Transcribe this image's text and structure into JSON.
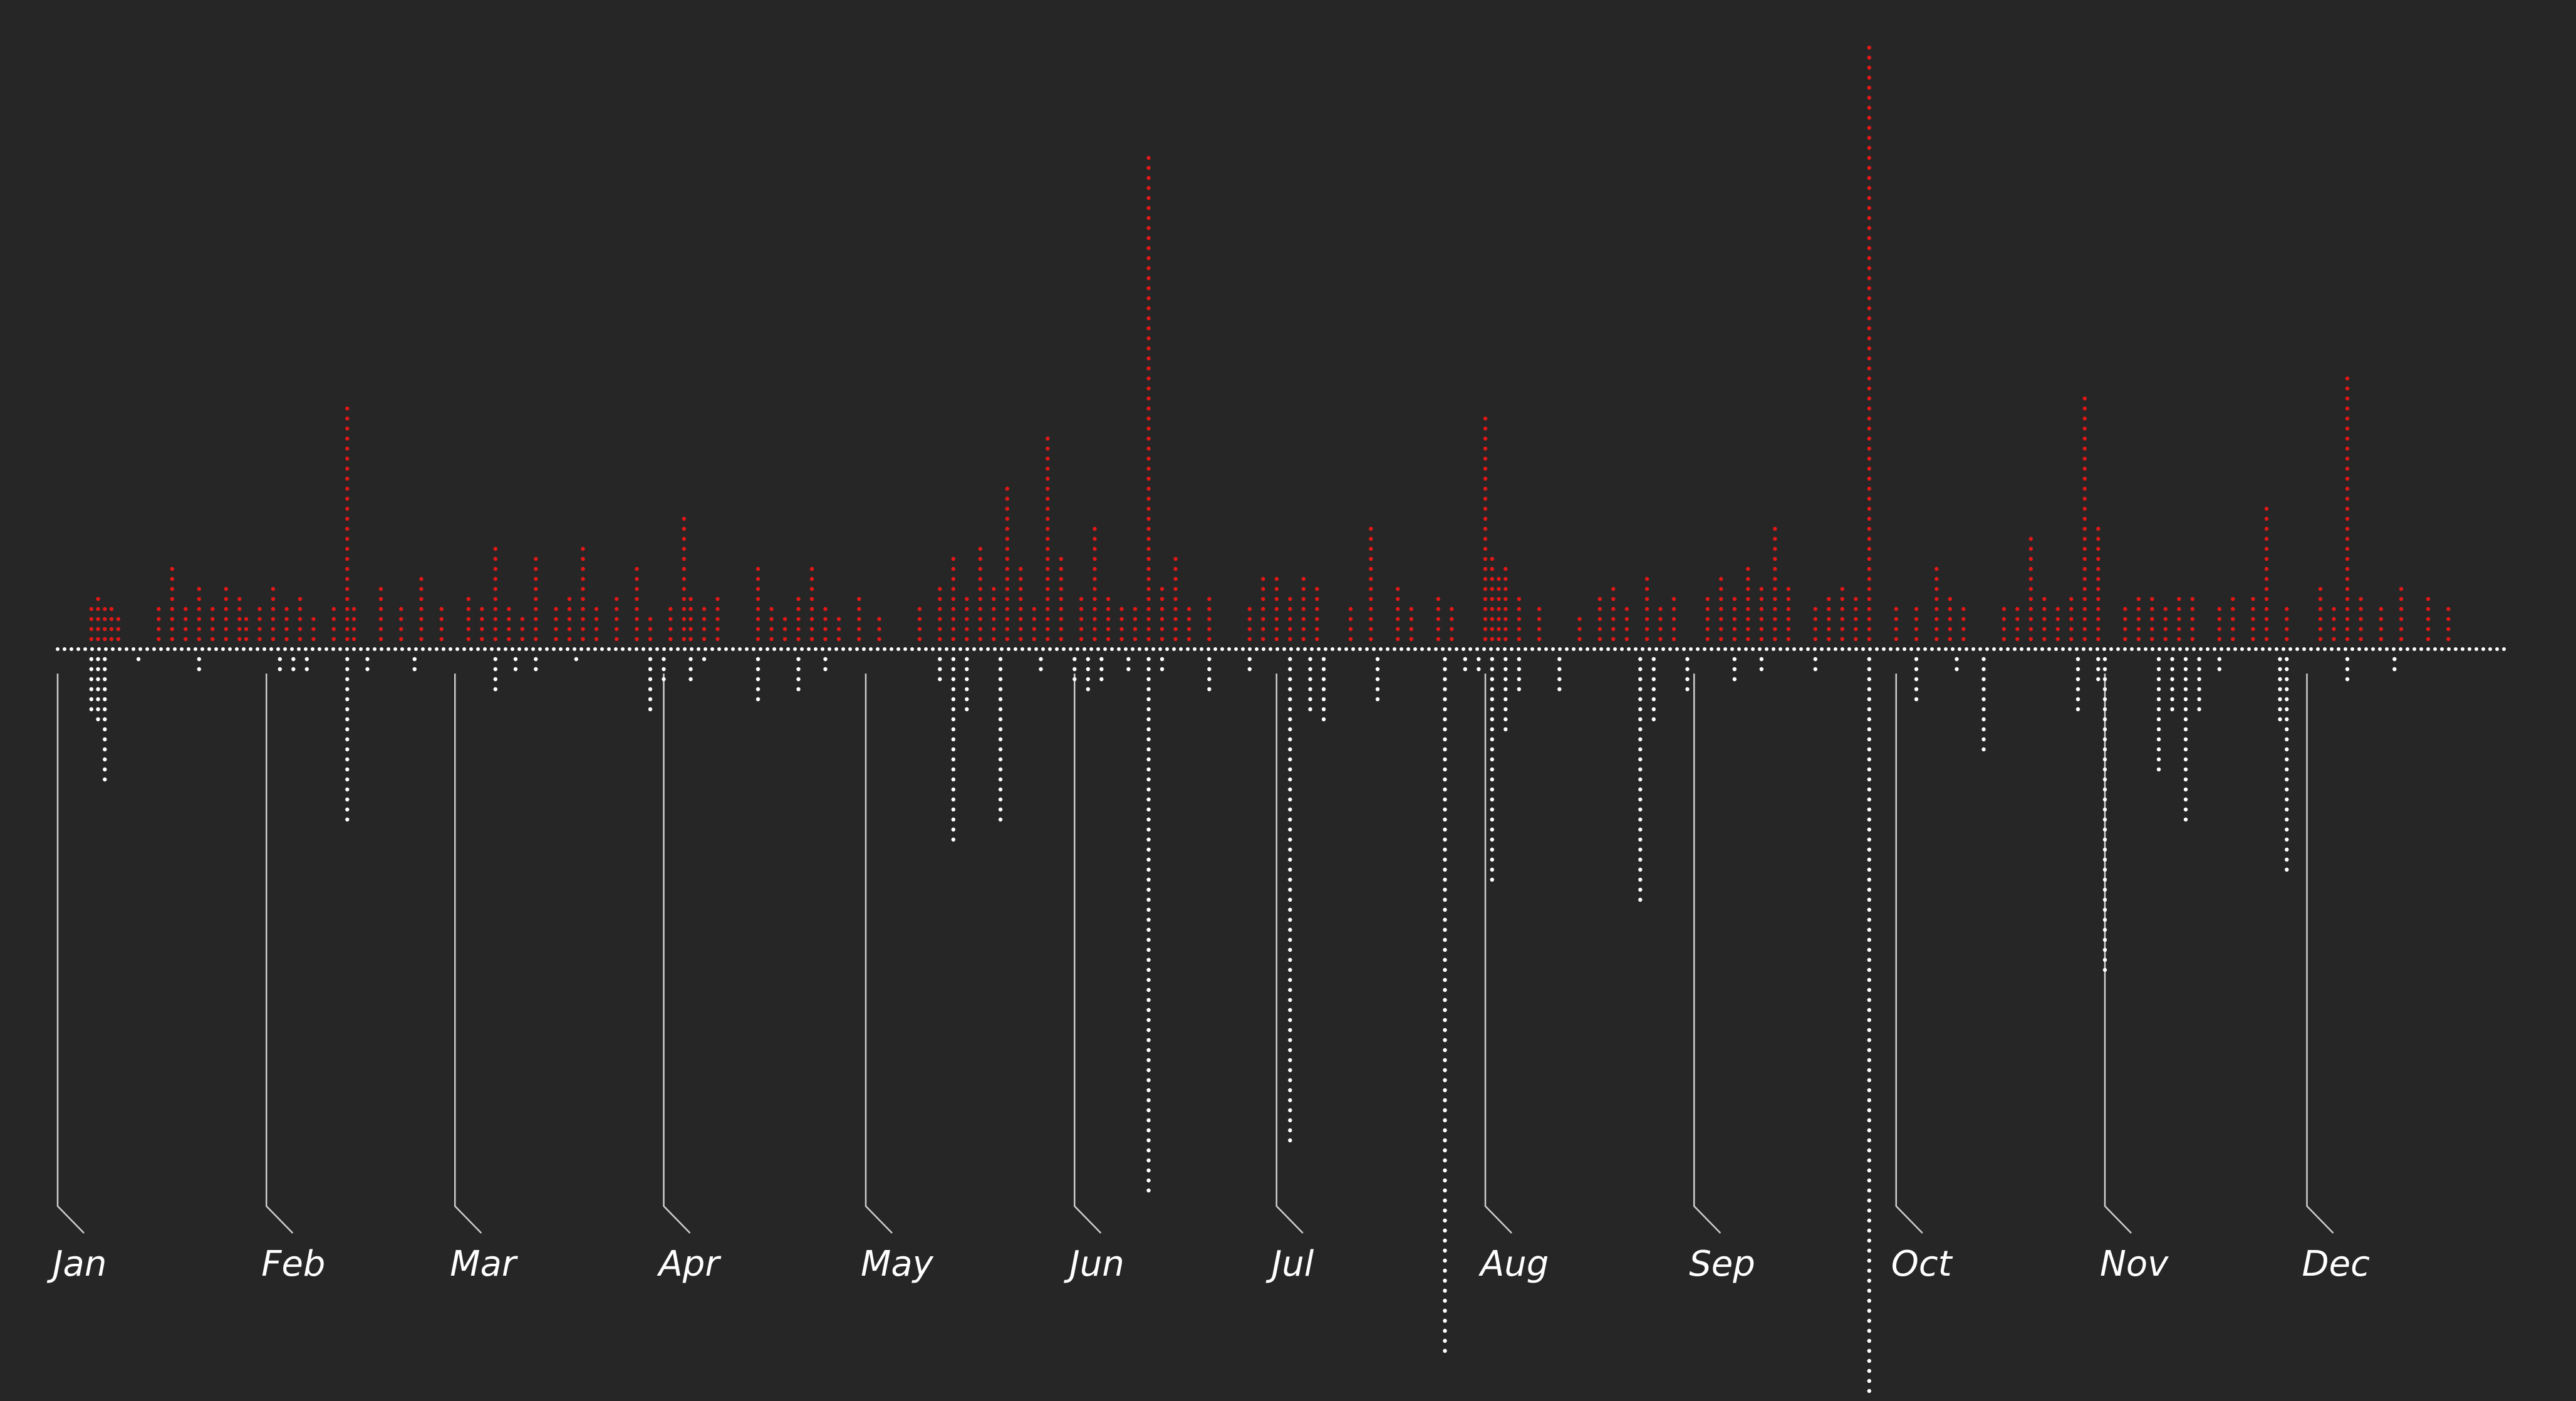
{
  "chart_data": {
    "type": "bar",
    "subtype": "dot-column timeline",
    "x_domain": [
      "2017-01-01",
      "2017-12-31"
    ],
    "xlabel": "",
    "ylabel": "",
    "ylim_up": [
      0,
      60
    ],
    "ylim_down": [
      0,
      75
    ],
    "grid": false,
    "legend": "none",
    "months": [
      {
        "label": "Jan",
        "date": "2017-01-01"
      },
      {
        "label": "Feb",
        "date": "2017-02-01"
      },
      {
        "label": "Mar",
        "date": "2017-03-01"
      },
      {
        "label": "Apr",
        "date": "2017-04-01"
      },
      {
        "label": "May",
        "date": "2017-05-01"
      },
      {
        "label": "Jun",
        "date": "2017-06-01"
      },
      {
        "label": "Jul",
        "date": "2017-07-01"
      },
      {
        "label": "Aug",
        "date": "2017-08-01"
      },
      {
        "label": "Sep",
        "date": "2017-09-01"
      },
      {
        "label": "Oct",
        "date": "2017-10-01"
      },
      {
        "label": "Nov",
        "date": "2017-11-01"
      },
      {
        "label": "Dec",
        "date": "2017-12-01"
      }
    ],
    "series": [
      {
        "color": "#e01818",
        "direction": "up",
        "points": [
          [
            "2017-01-06",
            4
          ],
          [
            "2017-01-07",
            5
          ],
          [
            "2017-01-08",
            4
          ],
          [
            "2017-01-09",
            4
          ],
          [
            "2017-01-10",
            3
          ],
          [
            "2017-01-16",
            4
          ],
          [
            "2017-01-18",
            8
          ],
          [
            "2017-01-20",
            4
          ],
          [
            "2017-01-22",
            6
          ],
          [
            "2017-01-24",
            4
          ],
          [
            "2017-01-26",
            6
          ],
          [
            "2017-01-28",
            5
          ],
          [
            "2017-01-29",
            3
          ],
          [
            "2017-01-31",
            4
          ],
          [
            "2017-02-02",
            6
          ],
          [
            "2017-02-04",
            4
          ],
          [
            "2017-02-06",
            5
          ],
          [
            "2017-02-08",
            3
          ],
          [
            "2017-02-11",
            4
          ],
          [
            "2017-02-13",
            24
          ],
          [
            "2017-02-14",
            4
          ],
          [
            "2017-02-18",
            6
          ],
          [
            "2017-02-21",
            4
          ],
          [
            "2017-02-24",
            7
          ],
          [
            "2017-02-27",
            4
          ],
          [
            "2017-03-03",
            5
          ],
          [
            "2017-03-05",
            4
          ],
          [
            "2017-03-07",
            10
          ],
          [
            "2017-03-09",
            4
          ],
          [
            "2017-03-11",
            3
          ],
          [
            "2017-03-13",
            9
          ],
          [
            "2017-03-16",
            4
          ],
          [
            "2017-03-18",
            5
          ],
          [
            "2017-03-20",
            10
          ],
          [
            "2017-03-22",
            4
          ],
          [
            "2017-03-25",
            5
          ],
          [
            "2017-03-28",
            8
          ],
          [
            "2017-03-30",
            3
          ],
          [
            "2017-04-02",
            4
          ],
          [
            "2017-04-04",
            13
          ],
          [
            "2017-04-05",
            5
          ],
          [
            "2017-04-07",
            4
          ],
          [
            "2017-04-09",
            5
          ],
          [
            "2017-04-15",
            8
          ],
          [
            "2017-04-17",
            4
          ],
          [
            "2017-04-19",
            3
          ],
          [
            "2017-04-21",
            5
          ],
          [
            "2017-04-23",
            8
          ],
          [
            "2017-04-25",
            4
          ],
          [
            "2017-04-27",
            3
          ],
          [
            "2017-04-30",
            5
          ],
          [
            "2017-05-03",
            3
          ],
          [
            "2017-05-09",
            4
          ],
          [
            "2017-05-12",
            6
          ],
          [
            "2017-05-14",
            9
          ],
          [
            "2017-05-16",
            5
          ],
          [
            "2017-05-18",
            10
          ],
          [
            "2017-05-20",
            6
          ],
          [
            "2017-05-22",
            16
          ],
          [
            "2017-05-24",
            8
          ],
          [
            "2017-05-26",
            4
          ],
          [
            "2017-05-28",
            21
          ],
          [
            "2017-05-30",
            9
          ],
          [
            "2017-06-02",
            5
          ],
          [
            "2017-06-04",
            12
          ],
          [
            "2017-06-06",
            5
          ],
          [
            "2017-06-08",
            4
          ],
          [
            "2017-06-10",
            4
          ],
          [
            "2017-06-12",
            49
          ],
          [
            "2017-06-14",
            6
          ],
          [
            "2017-06-16",
            9
          ],
          [
            "2017-06-18",
            4
          ],
          [
            "2017-06-21",
            5
          ],
          [
            "2017-06-27",
            4
          ],
          [
            "2017-06-29",
            7
          ],
          [
            "2017-07-01",
            7
          ],
          [
            "2017-07-03",
            5
          ],
          [
            "2017-07-05",
            7
          ],
          [
            "2017-07-07",
            6
          ],
          [
            "2017-07-12",
            4
          ],
          [
            "2017-07-15",
            12
          ],
          [
            "2017-07-19",
            6
          ],
          [
            "2017-07-21",
            4
          ],
          [
            "2017-07-25",
            5
          ],
          [
            "2017-07-27",
            4
          ],
          [
            "2017-08-01",
            23
          ],
          [
            "2017-08-02",
            9
          ],
          [
            "2017-08-03",
            7
          ],
          [
            "2017-08-04",
            8
          ],
          [
            "2017-08-06",
            5
          ],
          [
            "2017-08-09",
            4
          ],
          [
            "2017-08-15",
            3
          ],
          [
            "2017-08-18",
            5
          ],
          [
            "2017-08-20",
            6
          ],
          [
            "2017-08-22",
            4
          ],
          [
            "2017-08-25",
            7
          ],
          [
            "2017-08-27",
            4
          ],
          [
            "2017-08-29",
            5
          ],
          [
            "2017-09-03",
            5
          ],
          [
            "2017-09-05",
            7
          ],
          [
            "2017-09-07",
            5
          ],
          [
            "2017-09-09",
            8
          ],
          [
            "2017-09-11",
            6
          ],
          [
            "2017-09-13",
            12
          ],
          [
            "2017-09-15",
            6
          ],
          [
            "2017-09-19",
            4
          ],
          [
            "2017-09-21",
            5
          ],
          [
            "2017-09-23",
            6
          ],
          [
            "2017-09-25",
            5
          ],
          [
            "2017-09-27",
            60
          ],
          [
            "2017-10-01",
            4
          ],
          [
            "2017-10-04",
            4
          ],
          [
            "2017-10-07",
            8
          ],
          [
            "2017-10-09",
            5
          ],
          [
            "2017-10-11",
            4
          ],
          [
            "2017-10-17",
            4
          ],
          [
            "2017-10-19",
            4
          ],
          [
            "2017-10-21",
            11
          ],
          [
            "2017-10-23",
            5
          ],
          [
            "2017-10-25",
            4
          ],
          [
            "2017-10-27",
            5
          ],
          [
            "2017-10-29",
            25
          ],
          [
            "2017-10-31",
            12
          ],
          [
            "2017-11-04",
            4
          ],
          [
            "2017-11-06",
            5
          ],
          [
            "2017-11-08",
            5
          ],
          [
            "2017-11-10",
            4
          ],
          [
            "2017-11-12",
            5
          ],
          [
            "2017-11-14",
            5
          ],
          [
            "2017-11-18",
            4
          ],
          [
            "2017-11-20",
            5
          ],
          [
            "2017-11-23",
            5
          ],
          [
            "2017-11-25",
            14
          ],
          [
            "2017-11-28",
            4
          ],
          [
            "2017-12-03",
            6
          ],
          [
            "2017-12-05",
            4
          ],
          [
            "2017-12-07",
            27
          ],
          [
            "2017-12-09",
            5
          ],
          [
            "2017-12-12",
            4
          ],
          [
            "2017-12-15",
            6
          ],
          [
            "2017-12-19",
            5
          ],
          [
            "2017-12-22",
            4
          ]
        ]
      },
      {
        "color": "#ffffff",
        "direction": "down",
        "points": [
          [
            "2017-01-06",
            6
          ],
          [
            "2017-01-07",
            7
          ],
          [
            "2017-01-08",
            13
          ],
          [
            "2017-01-13",
            1
          ],
          [
            "2017-01-22",
            2
          ],
          [
            "2017-02-03",
            2
          ],
          [
            "2017-02-05",
            2
          ],
          [
            "2017-02-07",
            2
          ],
          [
            "2017-02-13",
            17
          ],
          [
            "2017-02-16",
            2
          ],
          [
            "2017-02-23",
            2
          ],
          [
            "2017-03-07",
            4
          ],
          [
            "2017-03-10",
            2
          ],
          [
            "2017-03-13",
            2
          ],
          [
            "2017-03-19",
            1
          ],
          [
            "2017-03-30",
            6
          ],
          [
            "2017-04-01",
            3
          ],
          [
            "2017-04-05",
            3
          ],
          [
            "2017-04-07",
            1
          ],
          [
            "2017-04-15",
            5
          ],
          [
            "2017-04-21",
            4
          ],
          [
            "2017-04-25",
            2
          ],
          [
            "2017-05-12",
            3
          ],
          [
            "2017-05-14",
            19
          ],
          [
            "2017-05-16",
            6
          ],
          [
            "2017-05-21",
            17
          ],
          [
            "2017-05-27",
            2
          ],
          [
            "2017-06-01",
            3
          ],
          [
            "2017-06-03",
            4
          ],
          [
            "2017-06-05",
            3
          ],
          [
            "2017-06-09",
            2
          ],
          [
            "2017-06-12",
            54
          ],
          [
            "2017-06-14",
            2
          ],
          [
            "2017-06-21",
            4
          ],
          [
            "2017-06-27",
            2
          ],
          [
            "2017-07-03",
            49
          ],
          [
            "2017-07-06",
            6
          ],
          [
            "2017-07-08",
            7
          ],
          [
            "2017-07-16",
            5
          ],
          [
            "2017-07-26",
            70
          ],
          [
            "2017-07-29",
            2
          ],
          [
            "2017-07-31",
            2
          ],
          [
            "2017-08-02",
            23
          ],
          [
            "2017-08-04",
            8
          ],
          [
            "2017-08-06",
            4
          ],
          [
            "2017-08-12",
            4
          ],
          [
            "2017-08-24",
            25
          ],
          [
            "2017-08-26",
            7
          ],
          [
            "2017-08-31",
            4
          ],
          [
            "2017-09-07",
            3
          ],
          [
            "2017-09-11",
            2
          ],
          [
            "2017-09-19",
            2
          ],
          [
            "2017-09-27",
            75
          ],
          [
            "2017-10-04",
            5
          ],
          [
            "2017-10-10",
            2
          ],
          [
            "2017-10-14",
            10
          ],
          [
            "2017-10-28",
            6
          ],
          [
            "2017-10-31",
            3
          ],
          [
            "2017-11-01",
            32
          ],
          [
            "2017-11-09",
            12
          ],
          [
            "2017-11-11",
            6
          ],
          [
            "2017-11-13",
            17
          ],
          [
            "2017-11-15",
            6
          ],
          [
            "2017-11-18",
            2
          ],
          [
            "2017-11-27",
            7
          ],
          [
            "2017-11-28",
            22
          ],
          [
            "2017-12-07",
            3
          ],
          [
            "2017-12-14",
            2
          ]
        ]
      }
    ]
  }
}
